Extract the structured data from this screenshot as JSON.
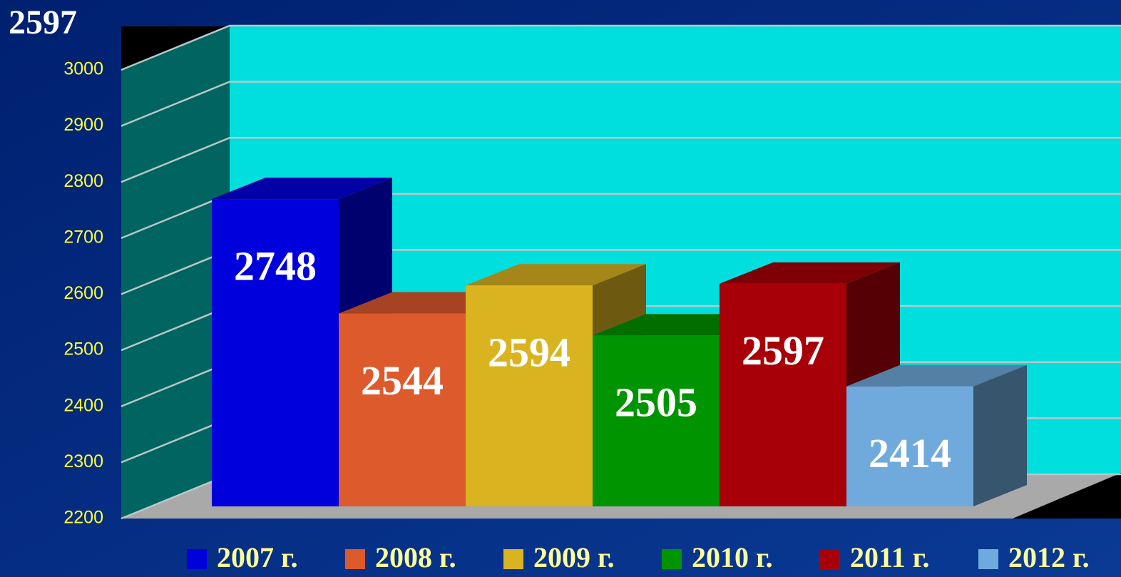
{
  "chart_data": {
    "type": "bar",
    "annotation": "2597",
    "categories": [
      null
    ],
    "series": [
      {
        "name": "2007 г.",
        "color": "#0000dd",
        "values": [
          2748
        ]
      },
      {
        "name": "2008 г.",
        "color": "#dd5a2d",
        "values": [
          2544
        ]
      },
      {
        "name": "2009 г.",
        "color": "#dab420",
        "values": [
          2594
        ]
      },
      {
        "name": "2010 г.",
        "color": "#009400",
        "values": [
          2505
        ]
      },
      {
        "name": "2011 г.",
        "color": "#a80008",
        "values": [
          2597
        ]
      },
      {
        "name": "2012 г.",
        "color": "#70aadc",
        "values": [
          2414
        ]
      }
    ],
    "ylim": [
      2200,
      3000
    ],
    "yticks": [
      2200,
      2300,
      2400,
      2500,
      2600,
      2700,
      2800,
      2900,
      3000
    ],
    "grid": true,
    "legend": "bottom"
  }
}
